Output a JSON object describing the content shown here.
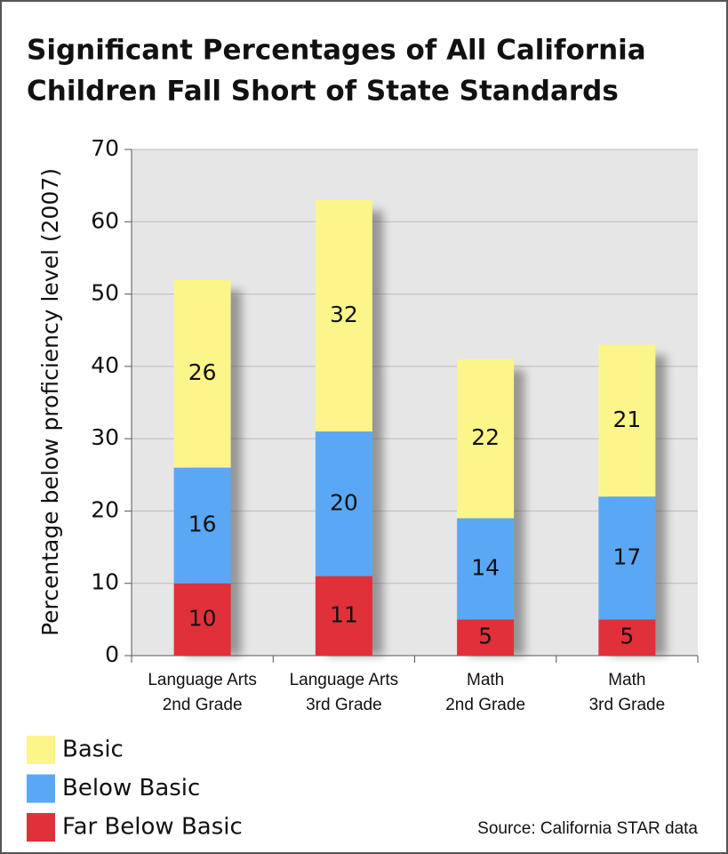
{
  "chart_data": {
    "type": "stacked-bar",
    "title": [
      "Significant Percentages of All California",
      "Children Fall Short of State Standards"
    ],
    "y_label": "Percentage below proficiency level (2007)",
    "categories": [
      [
        "Language Arts",
        "2nd Grade"
      ],
      [
        "Language Arts",
        "3rd Grade"
      ],
      [
        "Math",
        "2nd Grade"
      ],
      [
        "Math",
        "3rd Grade"
      ]
    ],
    "series": [
      {
        "name": "Far Below Basic",
        "color": "#e0303a",
        "values": [
          10,
          11,
          5,
          5
        ]
      },
      {
        "name": "Below Basic",
        "color": "#5aa8f5",
        "values": [
          16,
          20,
          14,
          17
        ]
      },
      {
        "name": "Basic",
        "color": "#fbf58a",
        "values": [
          26,
          32,
          22,
          21
        ]
      }
    ],
    "ylim": [
      0,
      70
    ],
    "yticks": [
      0,
      10,
      20,
      30,
      40,
      50,
      60,
      70
    ],
    "grid": true,
    "source": "Source: California STAR data"
  }
}
